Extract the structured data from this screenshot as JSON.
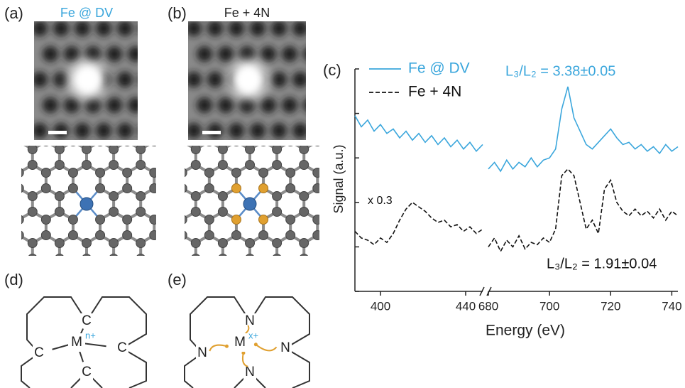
{
  "panel_a": {
    "label": "(a)",
    "title": "Fe @ DV"
  },
  "panel_b": {
    "label": "(b)",
    "title": "Fe + 4N"
  },
  "panel_d": {
    "label": "(d)",
    "ligands": [
      "C",
      "C",
      "C",
      "C"
    ],
    "metal": "M",
    "charge": "n+"
  },
  "panel_e": {
    "label": "(e)",
    "ligands": [
      "N",
      "N",
      "N",
      "N"
    ],
    "metal": "M",
    "charge": "x+"
  },
  "chart_data": {
    "type": "line",
    "panel_label": "(c)",
    "xlabel": "Energy (eV)",
    "ylabel": "Signal (a.u.)",
    "xlim": [
      388,
      742
    ],
    "xbreak": [
      448,
      680
    ],
    "xticks": [
      400,
      440,
      680,
      700,
      720,
      740
    ],
    "ylim": [
      0,
      5
    ],
    "yticks": [
      0,
      1,
      2,
      3,
      4,
      5
    ],
    "ytick_labels": false,
    "legend": "upper left",
    "x": [
      388,
      391,
      394,
      397,
      400,
      403,
      406,
      409,
      412,
      415,
      418,
      421,
      424,
      427,
      430,
      433,
      436,
      439,
      442,
      445,
      448,
      680,
      682,
      684,
      686,
      688,
      690,
      692,
      694,
      696,
      698,
      700,
      702,
      704,
      706,
      708,
      710,
      712,
      714,
      716,
      718,
      720,
      722,
      724,
      726,
      728,
      730,
      732,
      734,
      736,
      738,
      740,
      742
    ],
    "series": [
      {
        "name": "Fe @ DV",
        "color": "#3aa6dc",
        "dash": "none",
        "values": [
          3.95,
          3.7,
          3.85,
          3.6,
          3.75,
          3.55,
          3.65,
          3.45,
          3.6,
          3.4,
          3.55,
          3.35,
          3.5,
          3.3,
          3.45,
          3.25,
          3.4,
          3.2,
          3.35,
          3.15,
          3.3,
          2.75,
          2.9,
          2.7,
          2.95,
          2.75,
          2.9,
          2.8,
          3.0,
          2.8,
          2.95,
          3.0,
          3.2,
          4.1,
          4.6,
          3.9,
          3.6,
          3.3,
          3.2,
          3.35,
          3.5,
          3.65,
          3.45,
          3.3,
          3.35,
          3.2,
          3.3,
          3.15,
          3.25,
          3.1,
          3.3,
          3.15,
          3.25
        ]
      },
      {
        "name": "Fe + 4N",
        "color": "#111111",
        "dash": "6 3",
        "values": [
          1.35,
          1.2,
          1.15,
          1.05,
          1.2,
          1.1,
          1.3,
          1.6,
          1.85,
          2.0,
          1.9,
          1.8,
          1.65,
          1.55,
          1.6,
          1.45,
          1.5,
          1.35,
          1.45,
          1.3,
          1.4,
          1.0,
          1.2,
          0.9,
          1.15,
          1.0,
          1.25,
          0.95,
          1.1,
          1.05,
          1.2,
          1.1,
          1.4,
          2.6,
          2.75,
          2.6,
          2.0,
          1.4,
          1.6,
          1.3,
          2.3,
          2.5,
          2.0,
          1.8,
          1.7,
          1.85,
          1.7,
          1.8,
          1.65,
          1.85,
          1.6,
          1.8,
          1.7
        ]
      }
    ],
    "annotations": [
      {
        "text": "L₃/L₂ = 3.38±0.05",
        "color": "#3aa6dc"
      },
      {
        "text": "x 0.3",
        "color": "#111111"
      },
      {
        "text": "L₃/L₂ = 1.91±0.04",
        "color": "#111111"
      }
    ]
  }
}
